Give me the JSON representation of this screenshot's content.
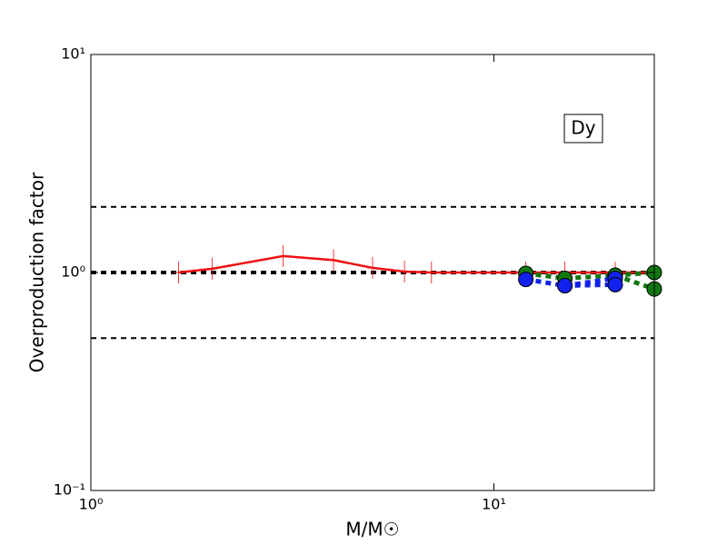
{
  "chart_data": {
    "type": "line",
    "xlabel": "M/M☉",
    "ylabel": "Overproduction factor",
    "xscale": "log",
    "yscale": "log",
    "xlim": [
      1,
      25
    ],
    "ylim": [
      0.1,
      10
    ],
    "xticks": [
      {
        "value": 1,
        "label": "10⁰"
      },
      {
        "value": 10,
        "label": "10¹"
      }
    ],
    "yticks": [
      {
        "value": 0.1,
        "label": "10⁻¹"
      },
      {
        "value": 1,
        "label": "10⁰"
      },
      {
        "value": 10,
        "label": "10¹"
      }
    ],
    "hlines": [
      {
        "value": 2,
        "color": "#000000",
        "width": 2
      },
      {
        "value": 1,
        "color": "#000000",
        "width": 4
      },
      {
        "value": 0.5,
        "color": "#000000",
        "width": 2
      }
    ],
    "annotation": "Dy",
    "series": [
      {
        "color": "#ee1111",
        "marker": "+",
        "dash": "solid",
        "x": [
          1.65,
          2,
          3,
          4,
          5,
          6,
          7,
          12,
          15,
          20,
          25
        ],
        "values": [
          1.0,
          1.04,
          1.19,
          1.14,
          1.05,
          1.01,
          1.0,
          1.0,
          1.0,
          1.0,
          1.0
        ]
      },
      {
        "color": "#117711",
        "marker": "o",
        "dash": "dotted",
        "x": [
          12,
          15,
          20,
          25
        ],
        "values": [
          0.99,
          0.94,
          0.97,
          1.0
        ]
      },
      {
        "color": "#117711",
        "marker": "o",
        "dash": "dotted",
        "x": [
          20,
          25
        ],
        "values": [
          0.97,
          0.84
        ]
      },
      {
        "color": "#1122ee",
        "marker": "o",
        "dash": "dotted",
        "x": [
          12,
          15,
          20
        ],
        "values": [
          0.93,
          0.87,
          0.94
        ]
      },
      {
        "color": "#1122ee",
        "marker": "o",
        "dash": "dotted",
        "x": [
          15,
          20
        ],
        "values": [
          0.87,
          0.88
        ]
      }
    ]
  }
}
